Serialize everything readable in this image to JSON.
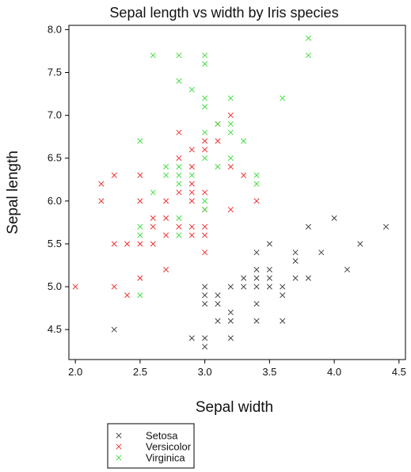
{
  "chart_data": {
    "type": "scatter",
    "title": "Sepal length vs width by Iris species",
    "xlabel": "Sepal width",
    "ylabel": "Sepal length",
    "xlim": [
      1.95,
      4.55
    ],
    "ylim": [
      4.15,
      8.05
    ],
    "x_ticks": [
      2.0,
      2.5,
      3.0,
      3.5,
      4.0,
      4.5
    ],
    "y_ticks": [
      4.5,
      5.0,
      5.5,
      6.0,
      6.5,
      7.0,
      7.5,
      8.0
    ],
    "x_tick_labels": [
      "2.0",
      "2.5",
      "3.0",
      "3.5",
      "4.0",
      "4.5"
    ],
    "y_tick_labels": [
      "4.5",
      "5.0",
      "5.5",
      "6.0",
      "6.5",
      "7.0",
      "7.5",
      "8.0"
    ],
    "marker": "x",
    "grid": false,
    "legend_position": "bottom-left",
    "series": [
      {
        "name": "Setosa",
        "color": "#444444",
        "points": [
          [
            2.3,
            4.5
          ],
          [
            2.9,
            4.4
          ],
          [
            3.0,
            4.4
          ],
          [
            3.0,
            4.3
          ],
          [
            3.0,
            4.8
          ],
          [
            3.0,
            4.9
          ],
          [
            3.0,
            5.0
          ],
          [
            3.1,
            4.9
          ],
          [
            3.1,
            4.8
          ],
          [
            3.1,
            4.6
          ],
          [
            3.2,
            4.4
          ],
          [
            3.2,
            4.6
          ],
          [
            3.2,
            4.7
          ],
          [
            3.2,
            5.0
          ],
          [
            3.3,
            5.0
          ],
          [
            3.3,
            5.1
          ],
          [
            3.4,
            4.6
          ],
          [
            3.4,
            4.8
          ],
          [
            3.4,
            5.0
          ],
          [
            3.4,
            5.1
          ],
          [
            3.4,
            5.2
          ],
          [
            3.4,
            5.4
          ],
          [
            3.5,
            5.0
          ],
          [
            3.5,
            5.1
          ],
          [
            3.5,
            5.2
          ],
          [
            3.5,
            5.5
          ],
          [
            3.6,
            4.6
          ],
          [
            3.6,
            4.9
          ],
          [
            3.6,
            5.0
          ],
          [
            3.7,
            5.1
          ],
          [
            3.7,
            5.3
          ],
          [
            3.7,
            5.4
          ],
          [
            3.8,
            5.1
          ],
          [
            3.8,
            5.7
          ],
          [
            3.9,
            5.4
          ],
          [
            4.0,
            5.8
          ],
          [
            4.1,
            5.2
          ],
          [
            4.2,
            5.5
          ],
          [
            4.4,
            5.7
          ]
        ]
      },
      {
        "name": "Versicolor",
        "color": "#ee3333",
        "points": [
          [
            2.0,
            5.0
          ],
          [
            2.2,
            6.0
          ],
          [
            2.2,
            6.2
          ],
          [
            2.3,
            5.0
          ],
          [
            2.3,
            5.5
          ],
          [
            2.3,
            6.3
          ],
          [
            2.4,
            4.9
          ],
          [
            2.4,
            5.5
          ],
          [
            2.5,
            5.1
          ],
          [
            2.5,
            5.5
          ],
          [
            2.5,
            6.0
          ],
          [
            2.5,
            6.3
          ],
          [
            2.6,
            5.5
          ],
          [
            2.6,
            5.7
          ],
          [
            2.6,
            5.8
          ],
          [
            2.7,
            5.2
          ],
          [
            2.7,
            5.6
          ],
          [
            2.7,
            5.8
          ],
          [
            2.7,
            6.0
          ],
          [
            2.8,
            5.7
          ],
          [
            2.8,
            6.1
          ],
          [
            2.8,
            6.5
          ],
          [
            2.8,
            6.8
          ],
          [
            2.9,
            5.6
          ],
          [
            2.9,
            5.7
          ],
          [
            2.9,
            6.0
          ],
          [
            2.9,
            6.1
          ],
          [
            2.9,
            6.2
          ],
          [
            2.9,
            6.4
          ],
          [
            2.9,
            6.6
          ],
          [
            3.0,
            5.4
          ],
          [
            3.0,
            5.6
          ],
          [
            3.0,
            5.7
          ],
          [
            3.0,
            5.9
          ],
          [
            3.0,
            6.1
          ],
          [
            3.0,
            6.6
          ],
          [
            3.0,
            6.7
          ],
          [
            3.1,
            6.7
          ],
          [
            3.1,
            6.9
          ],
          [
            3.2,
            5.9
          ],
          [
            3.2,
            6.4
          ],
          [
            3.2,
            7.0
          ],
          [
            3.3,
            6.3
          ],
          [
            3.4,
            6.0
          ]
        ]
      },
      {
        "name": "Virginica",
        "color": "#44dd44",
        "points": [
          [
            2.5,
            4.9
          ],
          [
            2.5,
            5.6
          ],
          [
            2.5,
            5.7
          ],
          [
            2.5,
            6.7
          ],
          [
            2.6,
            6.1
          ],
          [
            2.6,
            7.7
          ],
          [
            2.7,
            6.3
          ],
          [
            2.7,
            6.4
          ],
          [
            2.8,
            5.6
          ],
          [
            2.8,
            5.8
          ],
          [
            2.8,
            6.2
          ],
          [
            2.8,
            6.3
          ],
          [
            2.8,
            6.4
          ],
          [
            2.8,
            7.4
          ],
          [
            2.8,
            7.7
          ],
          [
            2.9,
            6.3
          ],
          [
            2.9,
            7.3
          ],
          [
            3.0,
            5.9
          ],
          [
            3.0,
            6.0
          ],
          [
            3.0,
            6.5
          ],
          [
            3.0,
            6.8
          ],
          [
            3.0,
            7.1
          ],
          [
            3.0,
            7.2
          ],
          [
            3.0,
            7.6
          ],
          [
            3.0,
            7.7
          ],
          [
            3.1,
            6.4
          ],
          [
            3.1,
            6.9
          ],
          [
            3.2,
            6.5
          ],
          [
            3.2,
            6.8
          ],
          [
            3.2,
            6.9
          ],
          [
            3.2,
            7.2
          ],
          [
            3.3,
            6.7
          ],
          [
            3.4,
            6.2
          ],
          [
            3.4,
            6.3
          ],
          [
            3.6,
            7.2
          ],
          [
            3.8,
            7.7
          ],
          [
            3.8,
            7.9
          ]
        ]
      }
    ]
  }
}
